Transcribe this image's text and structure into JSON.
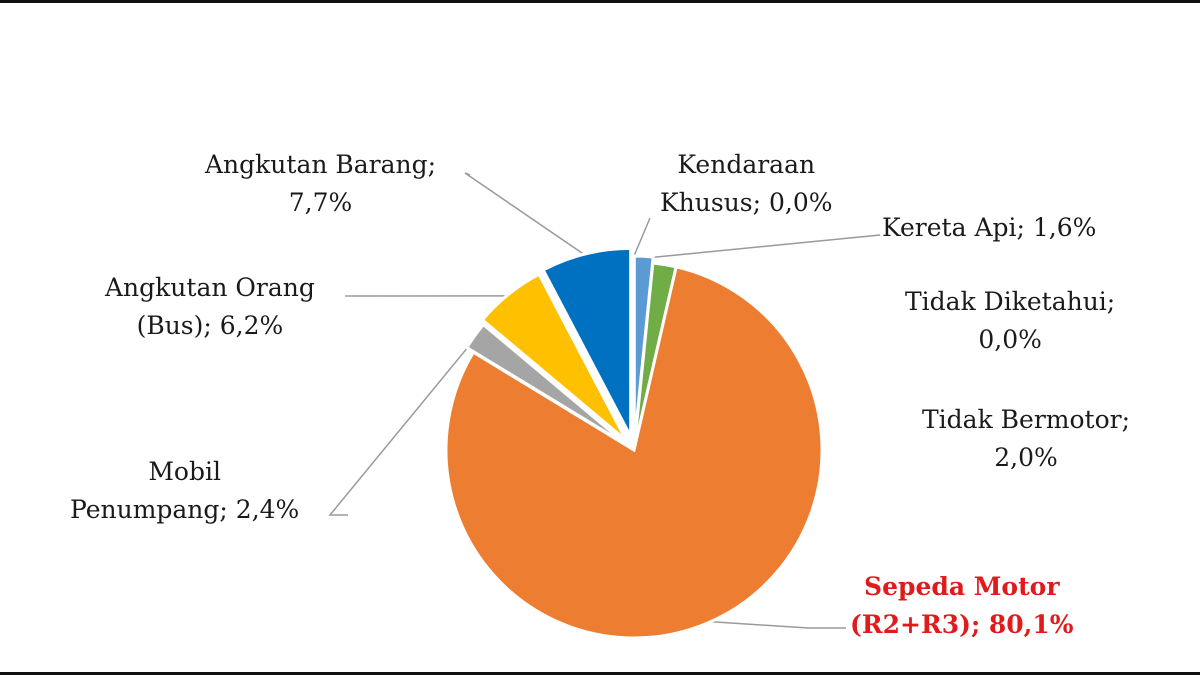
{
  "chart_data": {
    "type": "pie",
    "slices": [
      {
        "label": "Kereta Api",
        "value": 1.6,
        "color": "#5B9BD5",
        "line1": "Kereta Api; 1,6%",
        "line2": ""
      },
      {
        "label": "Tidak Diketahui",
        "value": 0.0,
        "color": "#A5A5A5",
        "line1": "Tidak Diketahui;",
        "line2": "0,0%"
      },
      {
        "label": "Tidak Bermotor",
        "value": 2.0,
        "color": "#70AD47",
        "line1": "Tidak Bermotor;",
        "line2": "2,0%"
      },
      {
        "label": "Sepeda Motor (R2+R3)",
        "value": 80.1,
        "color": "#ED7D31",
        "line1": "Sepeda Motor",
        "line2": "(R2+R3); 80,1%",
        "highlight": true
      },
      {
        "label": "Mobil Penumpang",
        "value": 2.4,
        "color": "#A5A5A5",
        "line1": "Mobil",
        "line2": "Penumpang; 2,4%"
      },
      {
        "label": "Angkutan Orang (Bus)",
        "value": 6.2,
        "color": "#FFC000",
        "line1": "Angkutan Orang",
        "line2": "(Bus); 6,2%"
      },
      {
        "label": "Angkutan Barang",
        "value": 7.7,
        "color": "#0070C0",
        "line1": "Angkutan Barang;",
        "line2": "7,7%"
      },
      {
        "label": "Kendaraan Khusus",
        "value": 0.0,
        "color": "#264478",
        "line1": "Kendaraan",
        "line2": "Khusus; 0,0%"
      }
    ],
    "highlight_color": "#E11B1B",
    "legend": "none"
  }
}
